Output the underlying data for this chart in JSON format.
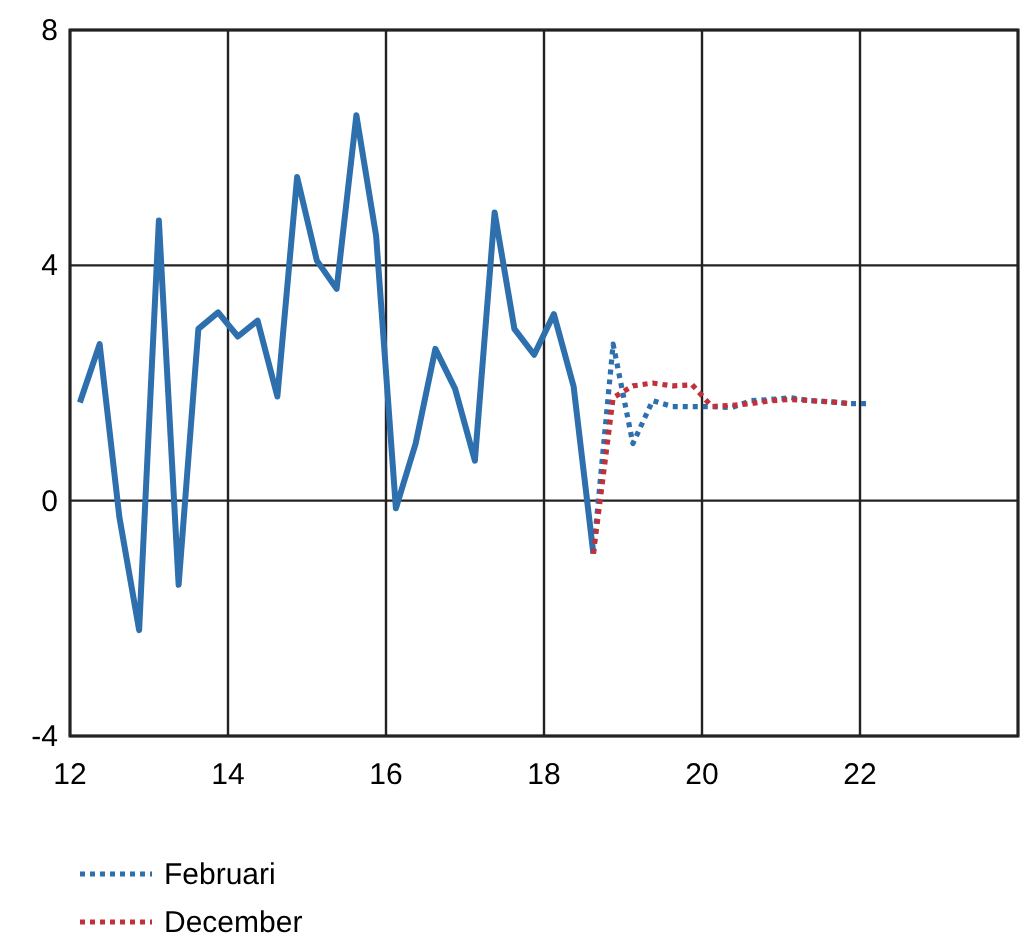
{
  "chart_data": {
    "type": "line",
    "xlim": [
      12,
      24
    ],
    "ylim": [
      -4,
      8
    ],
    "xticks": [
      12,
      14,
      16,
      18,
      20,
      22,
      {
        "value": 24,
        "label": null
      }
    ],
    "yticks": [
      -4,
      0,
      4,
      8
    ],
    "grid": true,
    "legend": "bottom left",
    "series": [
      {
        "color": "#2e6fad",
        "line_style": "solid",
        "x": [
          12.125,
          12.375,
          12.625,
          12.875,
          13.125,
          13.375,
          13.625,
          13.875,
          14.125,
          14.375,
          14.625,
          14.875,
          15.125,
          15.375,
          15.625,
          15.875,
          16.125,
          16.375,
          16.625,
          16.875,
          17.125,
          17.375,
          17.625,
          17.875,
          18.125,
          18.375,
          18.625
        ],
        "values": [
          1.67,
          2.66,
          -0.28,
          -2.2,
          4.76,
          -1.43,
          2.92,
          3.2,
          2.79,
          3.06,
          1.77,
          5.5,
          4.08,
          3.6,
          6.55,
          4.5,
          -0.13,
          0.97,
          2.58,
          1.9,
          0.68,
          4.9,
          2.92,
          2.48,
          3.17,
          1.94,
          -0.9
        ]
      },
      {
        "name": "Februari",
        "color": "#2e6fad",
        "line_style": "dotted",
        "x": [
          18.625,
          18.875,
          19.125,
          19.375,
          19.625,
          19.875,
          20.125,
          20.375,
          20.625,
          20.875,
          21.125,
          21.375,
          21.625,
          21.875,
          22.125
        ],
        "values": [
          -0.9,
          2.66,
          0.97,
          1.7,
          1.6,
          1.6,
          1.6,
          1.58,
          1.7,
          1.72,
          1.75,
          1.7,
          1.68,
          1.65,
          1.65
        ]
      },
      {
        "name": "December",
        "color": "#c0313a",
        "line_style": "dotted",
        "x": [
          18.625,
          18.875,
          19.125,
          19.375,
          19.625,
          19.875,
          20.125,
          20.375,
          20.625,
          20.875,
          21.125,
          21.375,
          21.625,
          21.875
        ],
        "values": [
          -0.9,
          1.75,
          1.95,
          2.0,
          1.95,
          1.97,
          1.6,
          1.62,
          1.65,
          1.7,
          1.72,
          1.7,
          1.68,
          1.65
        ]
      }
    ]
  }
}
